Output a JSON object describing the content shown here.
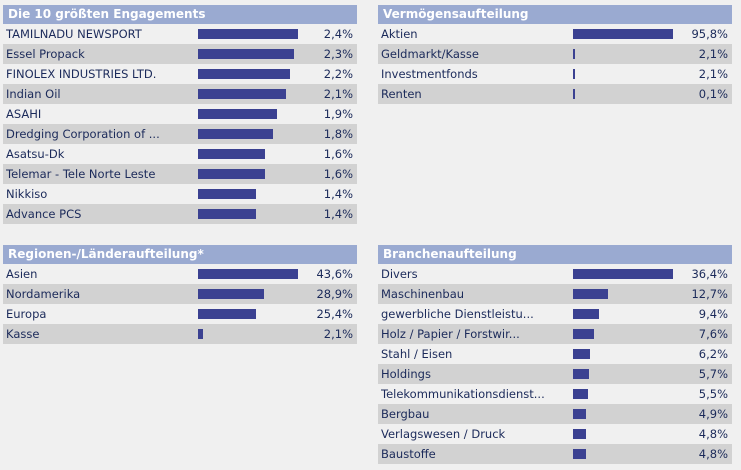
{
  "top10": {
    "title": "Die 10 größten Engagements",
    "rows": [
      {
        "name": "TAMILNADU NEWSPORT",
        "value": "2,4%",
        "pct": 2.4
      },
      {
        "name": "Essel Propack",
        "value": "2,3%",
        "pct": 2.3
      },
      {
        "name": "FINOLEX INDUSTRIES LTD.",
        "value": "2,2%",
        "pct": 2.2
      },
      {
        "name": "Indian Oil",
        "value": "2,1%",
        "pct": 2.1
      },
      {
        "name": "ASAHI",
        "value": "1,9%",
        "pct": 1.9
      },
      {
        "name": "Dredging Corporation of ...",
        "value": "1,8%",
        "pct": 1.8
      },
      {
        "name": "Asatsu-Dk",
        "value": "1,6%",
        "pct": 1.6
      },
      {
        "name": "Telemar - Tele Norte Leste",
        "value": "1,6%",
        "pct": 1.6
      },
      {
        "name": "Nikkiso",
        "value": "1,4%",
        "pct": 1.4
      },
      {
        "name": "Advance PCS",
        "value": "1,4%",
        "pct": 1.4
      }
    ]
  },
  "assets": {
    "title": "Vermögensaufteilung",
    "rows": [
      {
        "name": "Aktien",
        "value": "95,8%",
        "pct": 95.8
      },
      {
        "name": "Geldmarkt/Kasse",
        "value": "2,1%",
        "pct": 2.1
      },
      {
        "name": "Investmentfonds",
        "value": "2,1%",
        "pct": 2.1
      },
      {
        "name": "Renten",
        "value": "0,1%",
        "pct": 0.1
      }
    ]
  },
  "regions": {
    "title": "Regionen-/Länderaufteilung*",
    "rows": [
      {
        "name": "Asien",
        "value": "43,6%",
        "pct": 43.6
      },
      {
        "name": "Nordamerika",
        "value": "28,9%",
        "pct": 28.9
      },
      {
        "name": "Europa",
        "value": "25,4%",
        "pct": 25.4
      },
      {
        "name": "Kasse",
        "value": "2,1%",
        "pct": 2.1
      }
    ]
  },
  "sectors": {
    "title": "Branchenaufteilung",
    "rows": [
      {
        "name": "Divers",
        "value": "36,4%",
        "pct": 36.4
      },
      {
        "name": "Maschinenbau",
        "value": "12,7%",
        "pct": 12.7
      },
      {
        "name": "gewerbliche Dienstleistu...",
        "value": "9,4%",
        "pct": 9.4
      },
      {
        "name": "Holz / Papier / Forstwir...",
        "value": "7,6%",
        "pct": 7.6
      },
      {
        "name": "Stahl / Eisen",
        "value": "6,2%",
        "pct": 6.2
      },
      {
        "name": "Holdings",
        "value": "5,7%",
        "pct": 5.7
      },
      {
        "name": "Telekommunikationsdienst...",
        "value": "5,5%",
        "pct": 5.5
      },
      {
        "name": "Bergbau",
        "value": "4,9%",
        "pct": 4.9
      },
      {
        "name": "Verlagswesen / Druck",
        "value": "4,8%",
        "pct": 4.8
      },
      {
        "name": "Baustoffe",
        "value": "4,8%",
        "pct": 4.8
      }
    ]
  }
}
